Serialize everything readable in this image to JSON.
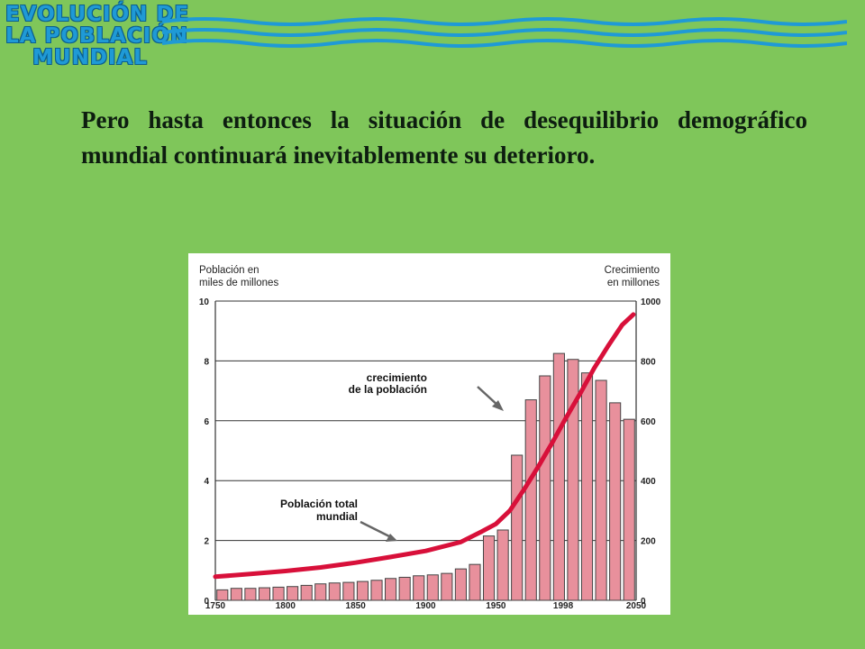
{
  "logo": {
    "line1": "EVOLUCIÓN DE",
    "line2": "LA POBLACIÓN",
    "line3": "MUNDIAL"
  },
  "paragraph": "Pero hasta entonces la situación de desequilibrio demográfico mundial continuará inevitablemente su deterioro.",
  "colors": {
    "background": "#7fc65a",
    "bar_fill": "#e8909c",
    "bar_stroke": "#444444",
    "line": "#d8103a",
    "wave": "#1f9ad6"
  },
  "chart_data": {
    "type": "bar",
    "ylabel_left": "Población en\nmiles de millones",
    "ylabel_right": "Crecimiento\nen millones",
    "x_range": [
      1750,
      2050
    ],
    "x_ticks": [
      {
        "value": 1750,
        "label": "1750"
      },
      {
        "value": 1800,
        "label": "1800"
      },
      {
        "value": 1850,
        "label": "1850"
      },
      {
        "value": 1900,
        "label": "1900"
      },
      {
        "value": 1950,
        "label": "1950"
      },
      {
        "value": 1998,
        "label": "1998"
      },
      {
        "value": 2050,
        "label": "2050"
      }
    ],
    "y_left": {
      "range": [
        0,
        10
      ],
      "ticks": [
        "0",
        "2",
        "4",
        "6",
        "8",
        "10"
      ]
    },
    "y_right": {
      "range": [
        0,
        1000
      ],
      "ticks": [
        "0",
        "200",
        "400",
        "600",
        "800",
        "1000"
      ]
    },
    "grid": "horizontal",
    "series": [
      {
        "name": "crecimiento de la población",
        "type": "bar",
        "axis": "right",
        "x": [
          1755,
          1765,
          1775,
          1785,
          1795,
          1805,
          1815,
          1825,
          1835,
          1845,
          1855,
          1865,
          1875,
          1885,
          1895,
          1905,
          1915,
          1925,
          1935,
          1945,
          1955,
          1965,
          1975,
          1985,
          1995,
          2005,
          2015,
          2025,
          2035,
          2045
        ],
        "values": [
          35,
          40,
          40,
          42,
          44,
          46,
          50,
          55,
          58,
          60,
          63,
          67,
          73,
          77,
          82,
          85,
          90,
          105,
          120,
          215,
          235,
          485,
          670,
          750,
          825,
          805,
          760,
          735,
          660,
          605
        ]
      },
      {
        "name": "Población total mundial",
        "type": "line",
        "axis": "left",
        "x": [
          1750,
          1775,
          1800,
          1825,
          1850,
          1875,
          1900,
          1925,
          1940,
          1950,
          1960,
          1970,
          1980,
          1990,
          2000,
          2010,
          2020,
          2030,
          2040,
          2048
        ],
        "values": [
          0.79,
          0.88,
          0.98,
          1.1,
          1.26,
          1.45,
          1.65,
          1.95,
          2.3,
          2.55,
          3.0,
          3.7,
          4.45,
          5.25,
          6.1,
          6.9,
          7.75,
          8.5,
          9.2,
          9.55
        ]
      }
    ],
    "annotations": [
      {
        "text": "crecimiento\nde la población",
        "points_to": "bars",
        "x": 1978,
        "y": 640
      },
      {
        "text": "Población total\nmundial",
        "points_to": "line",
        "x": 1910,
        "y": 175
      }
    ]
  }
}
